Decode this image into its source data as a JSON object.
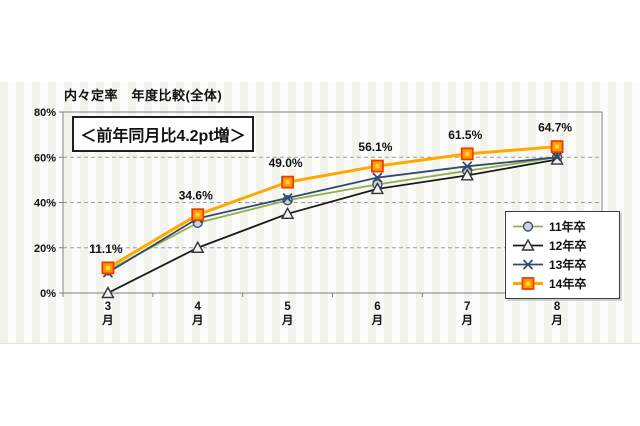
{
  "chart_data": {
    "type": "line",
    "title": "内々定率　年度比較(全体)",
    "annotation": "＜前年同月比4.2pt増＞",
    "categories": [
      "3月",
      "4月",
      "5月",
      "6月",
      "7月",
      "8月"
    ],
    "xlabel": "",
    "ylabel": "",
    "ylim": [
      0,
      80
    ],
    "yticks": [
      0,
      20,
      40,
      60,
      80
    ],
    "ytick_suffix": "%",
    "grid": "horizontal-dashed",
    "legend_position": "middle-right",
    "series": [
      {
        "name": "11年卒",
        "marker": "circle",
        "color": "#92AE4F",
        "marker_fill": "#C9D2DE",
        "marker_stroke": "#44546A",
        "values": [
          10,
          31,
          41,
          48,
          54,
          60
        ]
      },
      {
        "name": "12年卒",
        "marker": "triangle",
        "color": "#1A1A1A",
        "marker_fill": "#F2F2F2",
        "marker_stroke": "#333333",
        "values": [
          0,
          20,
          35,
          46,
          52,
          59
        ]
      },
      {
        "name": "13年卒",
        "marker": "x",
        "color": "#2F4A6B",
        "values": [
          9,
          33,
          42,
          51,
          56,
          60
        ]
      },
      {
        "name": "14年卒",
        "marker": "square",
        "color": "#FFA800",
        "marker_fill": "#FF9E00",
        "marker_stroke": "#F03B00",
        "marker_highlight": "#FFD23F",
        "line_width": 3,
        "values": [
          11.1,
          34.6,
          49.0,
          56.1,
          61.5,
          64.7
        ],
        "labels": [
          "11.1%",
          "34.6%",
          "49.0%",
          "56.1%",
          "61.5%",
          "64.7%"
        ]
      }
    ]
  }
}
